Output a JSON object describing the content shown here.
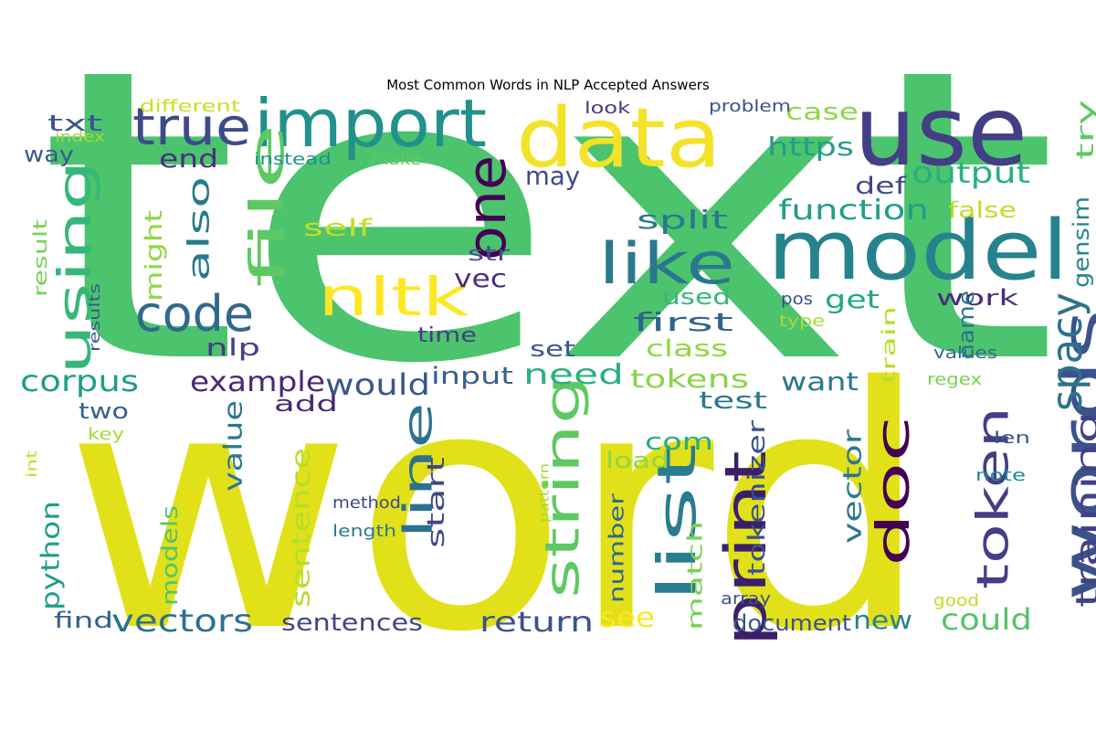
{
  "chart_data": {
    "type": "wordcloud",
    "title": "Most Common Words in NLP Accepted Answers",
    "colormap": "viridis",
    "words": [
      {
        "text": "text",
        "color": "#4cc36d"
      },
      {
        "text": "word",
        "color": "#e2e119"
      },
      {
        "text": "data",
        "color": "#f4e229"
      },
      {
        "text": "use",
        "color": "#433e85"
      },
      {
        "text": "model",
        "color": "#26838e"
      },
      {
        "text": "words",
        "color": "#3b528b"
      },
      {
        "text": "import",
        "color": "#21918c"
      },
      {
        "text": "true",
        "color": "#3e4a89"
      },
      {
        "text": "file",
        "color": "#5ec962"
      },
      {
        "text": "one",
        "color": "#440154"
      },
      {
        "text": "like",
        "color": "#2a788e"
      },
      {
        "text": "nltk",
        "color": "#fde725"
      },
      {
        "text": "using",
        "color": "#35b779"
      },
      {
        "text": "code",
        "color": "#31688e"
      },
      {
        "text": "string",
        "color": "#5ec962"
      },
      {
        "text": "line",
        "color": "#2c728e"
      },
      {
        "text": "list",
        "color": "#287d8e"
      },
      {
        "text": "print",
        "color": "#3b1f6b"
      },
      {
        "text": "doc",
        "color": "#440154"
      },
      {
        "text": "token",
        "color": "#433e85"
      },
      {
        "text": "spacy",
        "color": "#2c728e"
      },
      {
        "text": "training",
        "color": "#424086"
      },
      {
        "text": "output",
        "color": "#2ab07f"
      },
      {
        "text": "function",
        "color": "#1f9e89"
      },
      {
        "text": "also",
        "color": "#2a788e"
      },
      {
        "text": "might",
        "color": "#8fd744"
      },
      {
        "text": "corpus",
        "color": "#1f9e89"
      },
      {
        "text": "example",
        "color": "#482979"
      },
      {
        "text": "would",
        "color": "#39568c"
      },
      {
        "text": "txt",
        "color": "#3a548c"
      },
      {
        "text": "way",
        "color": "#365c8d"
      },
      {
        "text": "end",
        "color": "#46327e"
      },
      {
        "text": "https",
        "color": "#1f9e89"
      },
      {
        "text": "case",
        "color": "#8fd744"
      },
      {
        "text": "def",
        "color": "#3e4989"
      },
      {
        "text": "try",
        "color": "#5ec962"
      },
      {
        "text": "gensim",
        "color": "#25858e"
      },
      {
        "text": "false",
        "color": "#bddf26"
      },
      {
        "text": "split",
        "color": "#2a788e"
      },
      {
        "text": "may",
        "color": "#3e4a89"
      },
      {
        "text": "self",
        "color": "#c2df23"
      },
      {
        "text": "vec",
        "color": "#46317e"
      },
      {
        "text": "str",
        "color": "#3b528b"
      },
      {
        "text": "used",
        "color": "#35b779"
      },
      {
        "text": "first",
        "color": "#33638d"
      },
      {
        "text": "get",
        "color": "#22a785"
      },
      {
        "text": "work",
        "color": "#472d7b"
      },
      {
        "text": "name",
        "color": "#2c728e"
      },
      {
        "text": "nlp",
        "color": "#424086"
      },
      {
        "text": "result",
        "color": "#7ad151"
      },
      {
        "text": "set",
        "color": "#39568c"
      },
      {
        "text": "class",
        "color": "#8fd744"
      },
      {
        "text": "need",
        "color": "#2ab07f"
      },
      {
        "text": "tokens",
        "color": "#86d549"
      },
      {
        "text": "want",
        "color": "#2a788e"
      },
      {
        "text": "train",
        "color": "#b5de2b"
      },
      {
        "text": "input",
        "color": "#355f8d"
      },
      {
        "text": "time",
        "color": "#433e85"
      },
      {
        "text": "test",
        "color": "#2a788e"
      },
      {
        "text": "add",
        "color": "#482878"
      },
      {
        "text": "two",
        "color": "#34618d"
      },
      {
        "text": "value",
        "color": "#2a788e"
      },
      {
        "text": "com",
        "color": "#27ad81"
      },
      {
        "text": "load",
        "color": "#8fd744"
      },
      {
        "text": "start",
        "color": "#3e4989"
      },
      {
        "text": "number",
        "color": "#31688e"
      },
      {
        "text": "match",
        "color": "#7ad151"
      },
      {
        "text": "tokenizer",
        "color": "#3b528b"
      },
      {
        "text": "vector",
        "color": "#2a788e"
      },
      {
        "text": "sentence",
        "color": "#b5de2b"
      },
      {
        "text": "models",
        "color": "#52c569"
      },
      {
        "text": "python",
        "color": "#1f9e89"
      },
      {
        "text": "return",
        "color": "#3b528b"
      },
      {
        "text": "see",
        "color": "#fde725"
      },
      {
        "text": "vectors",
        "color": "#2d708e"
      },
      {
        "text": "find",
        "color": "#34618d"
      },
      {
        "text": "sentences",
        "color": "#414487"
      },
      {
        "text": "document",
        "color": "#3b528b"
      },
      {
        "text": "new",
        "color": "#26818e"
      },
      {
        "text": "could",
        "color": "#52c569"
      },
      {
        "text": "different",
        "color": "#c8e020"
      },
      {
        "text": "index",
        "color": "#a5db36"
      },
      {
        "text": "instead",
        "color": "#21918c"
      },
      {
        "text": "make",
        "color": "#5ec962"
      },
      {
        "text": "look",
        "color": "#443a83"
      },
      {
        "text": "problem",
        "color": "#3b528b"
      },
      {
        "text": "results",
        "color": "#38588c"
      },
      {
        "text": "pos",
        "color": "#3b528b"
      },
      {
        "text": "type",
        "color": "#a5db36"
      },
      {
        "text": "values",
        "color": "#31688e"
      },
      {
        "text": "regex",
        "color": "#7ad151"
      },
      {
        "text": "key",
        "color": "#a5db36"
      },
      {
        "text": "int",
        "color": "#c2df23"
      },
      {
        "text": "len",
        "color": "#3b528b"
      },
      {
        "text": "note",
        "color": "#25848e"
      },
      {
        "text": "method",
        "color": "#3e4989"
      },
      {
        "text": "length",
        "color": "#2a788e"
      },
      {
        "text": "pattern",
        "color": "#a0da39"
      },
      {
        "text": "array",
        "color": "#3b528b"
      },
      {
        "text": "good",
        "color": "#bddf26"
      }
    ]
  }
}
